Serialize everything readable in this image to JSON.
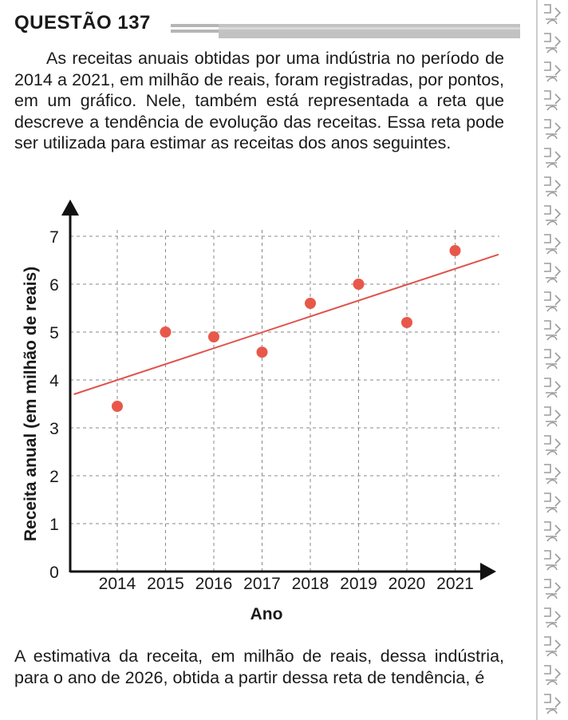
{
  "question": {
    "title": "QUESTÃO 137",
    "intro": "As receitas anuais obtidas por uma indústria no período de 2014 a 2021, em milhão de reais, foram registradas, por pontos, em um gráfico. Nele, também está representada a reta que descreve a tendência de evolução das receitas. Essa reta pode ser utilizada para estimar as receitas dos anos seguintes.",
    "prompt": "A estimativa da receita, em milhão de reais, dessa indústria, para o ano de 2026, obtida a partir dessa reta de tendência, é"
  },
  "colors": {
    "points": "#e8584a",
    "trend_line": "#e0524a",
    "grid": "#8a8a8a",
    "axis": "#111111",
    "title_rule": "#b5b5b5"
  },
  "chart_data": {
    "type": "scatter",
    "x": [
      2014,
      2015,
      2016,
      2017,
      2018,
      2019,
      2020,
      2021
    ],
    "y": [
      3.45,
      5.0,
      4.9,
      4.58,
      5.6,
      6.0,
      5.2,
      6.7
    ],
    "categories": [
      "2014",
      "2015",
      "2016",
      "2017",
      "2018",
      "2019",
      "2020",
      "2021"
    ],
    "yticks": [
      "0",
      "1",
      "2",
      "3",
      "4",
      "5",
      "6",
      "7"
    ],
    "xlabel": "Ano",
    "ylabel": "Receita anual (em milhão de reais)",
    "ylim": [
      0,
      7
    ],
    "trend_line": {
      "x": [
        2013.1,
        2021.9
      ],
      "y": [
        3.7,
        6.62
      ]
    },
    "grid": true
  }
}
